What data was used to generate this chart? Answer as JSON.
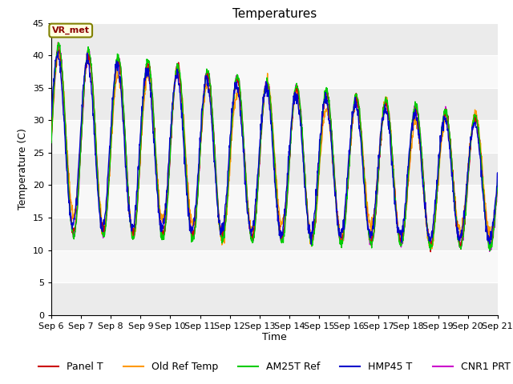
{
  "title": "Temperatures",
  "xlabel": "Time",
  "ylabel": "Temperature (C)",
  "ylim": [
    0,
    45
  ],
  "yticks": [
    0,
    5,
    10,
    15,
    20,
    25,
    30,
    35,
    40,
    45
  ],
  "num_days": 15,
  "num_points": 1440,
  "series_colors": {
    "Panel T": "#cc0000",
    "Old Ref Temp": "#ff9900",
    "AM25T Ref": "#00cc00",
    "HMP45 T": "#0000cc",
    "CNR1 PRT": "#cc00cc"
  },
  "annotation_text": "VR_met",
  "background_color": "#ebebeb",
  "stripe_color": "#f8f8f8",
  "grid_color": "#ffffff",
  "title_fontsize": 11,
  "label_fontsize": 9,
  "tick_fontsize": 8,
  "legend_fontsize": 9
}
